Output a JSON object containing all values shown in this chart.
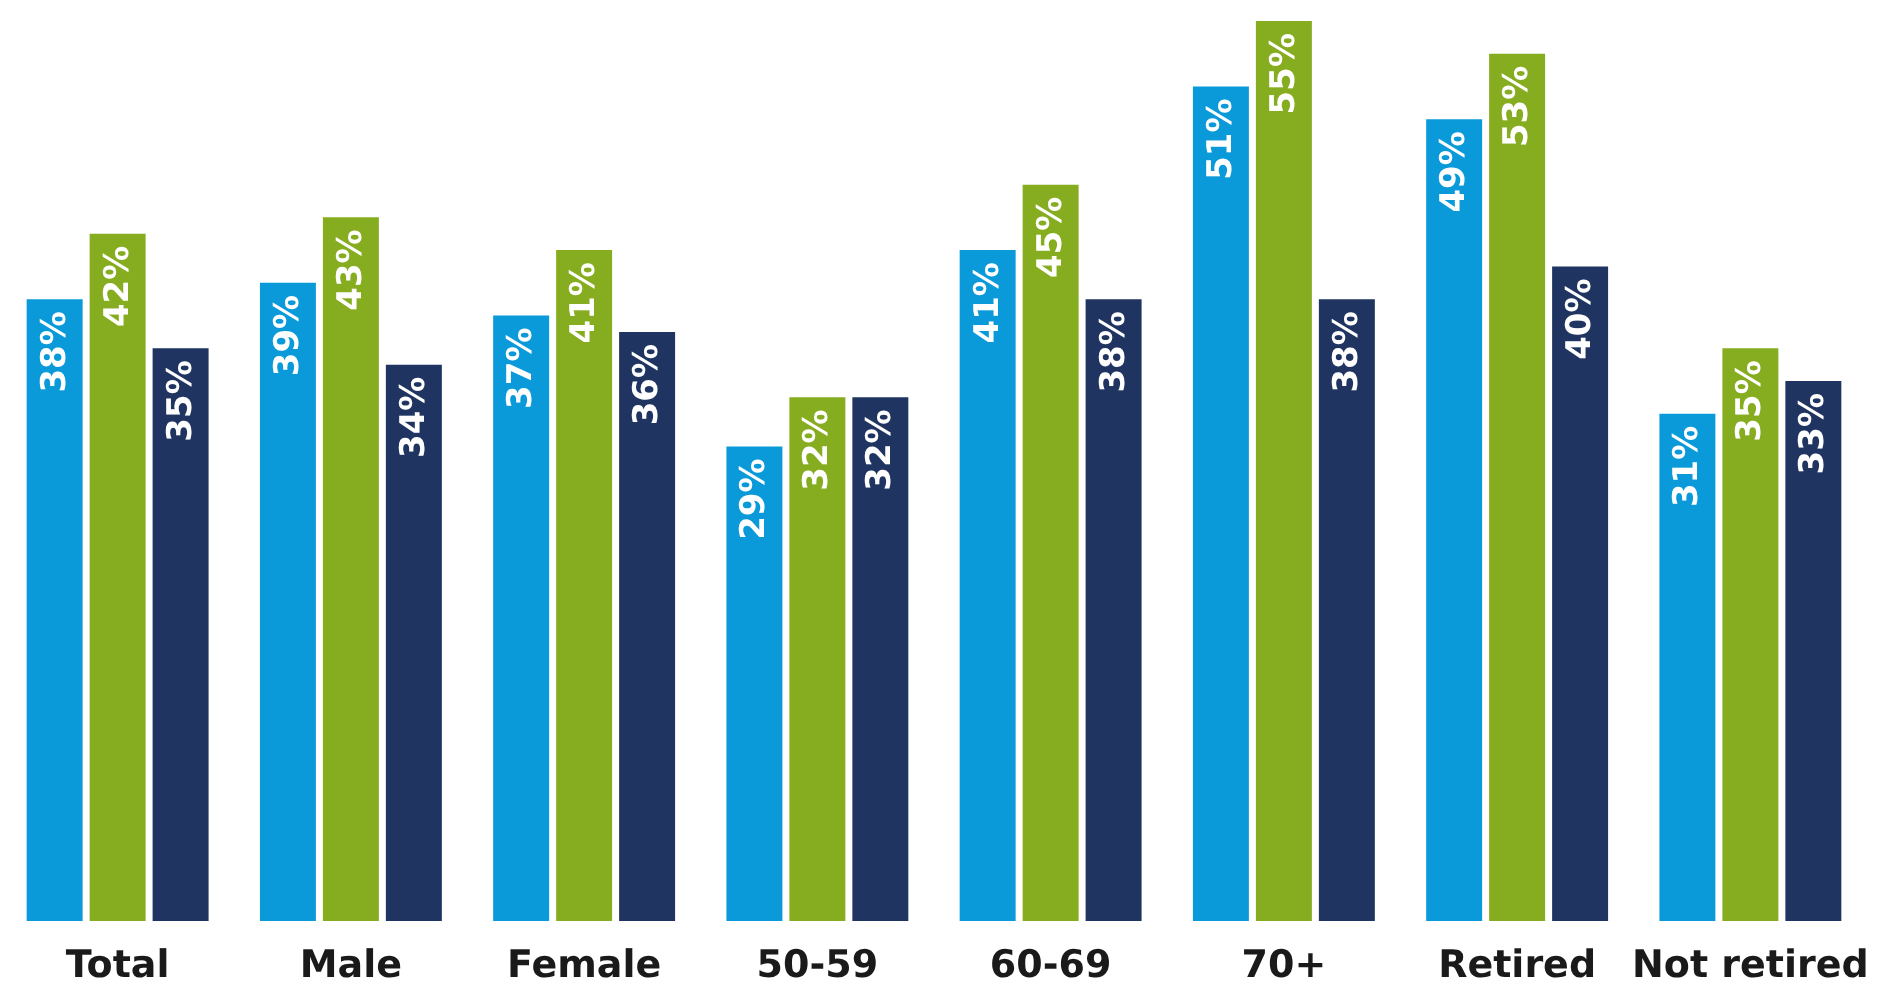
{
  "chart_data": {
    "type": "bar",
    "categories": [
      "Total",
      "Male",
      "Female",
      "50-59",
      "60-69",
      "70+",
      "Retired",
      "Not retired"
    ],
    "series": [
      {
        "color": "#0a9ad9",
        "values": [
          38,
          39,
          37,
          29,
          41,
          51,
          49,
          31
        ],
        "value_labels": [
          "38%",
          "39%",
          "37%",
          "29%",
          "41%",
          "51%",
          "49%",
          "31%"
        ]
      },
      {
        "color": "#86ac1f",
        "values": [
          42,
          43,
          41,
          32,
          45,
          55,
          53,
          35
        ],
        "value_labels": [
          "42%",
          "43%",
          "41%",
          "32%",
          "45%",
          "55%",
          "53%",
          "35%"
        ]
      },
      {
        "color": "#1f3461",
        "values": [
          35,
          34,
          36,
          32,
          38,
          38,
          40,
          33
        ],
        "value_labels": [
          "35%",
          "34%",
          "36%",
          "32%",
          "38%",
          "38%",
          "40%",
          "33%"
        ]
      }
    ],
    "grid": false
  }
}
